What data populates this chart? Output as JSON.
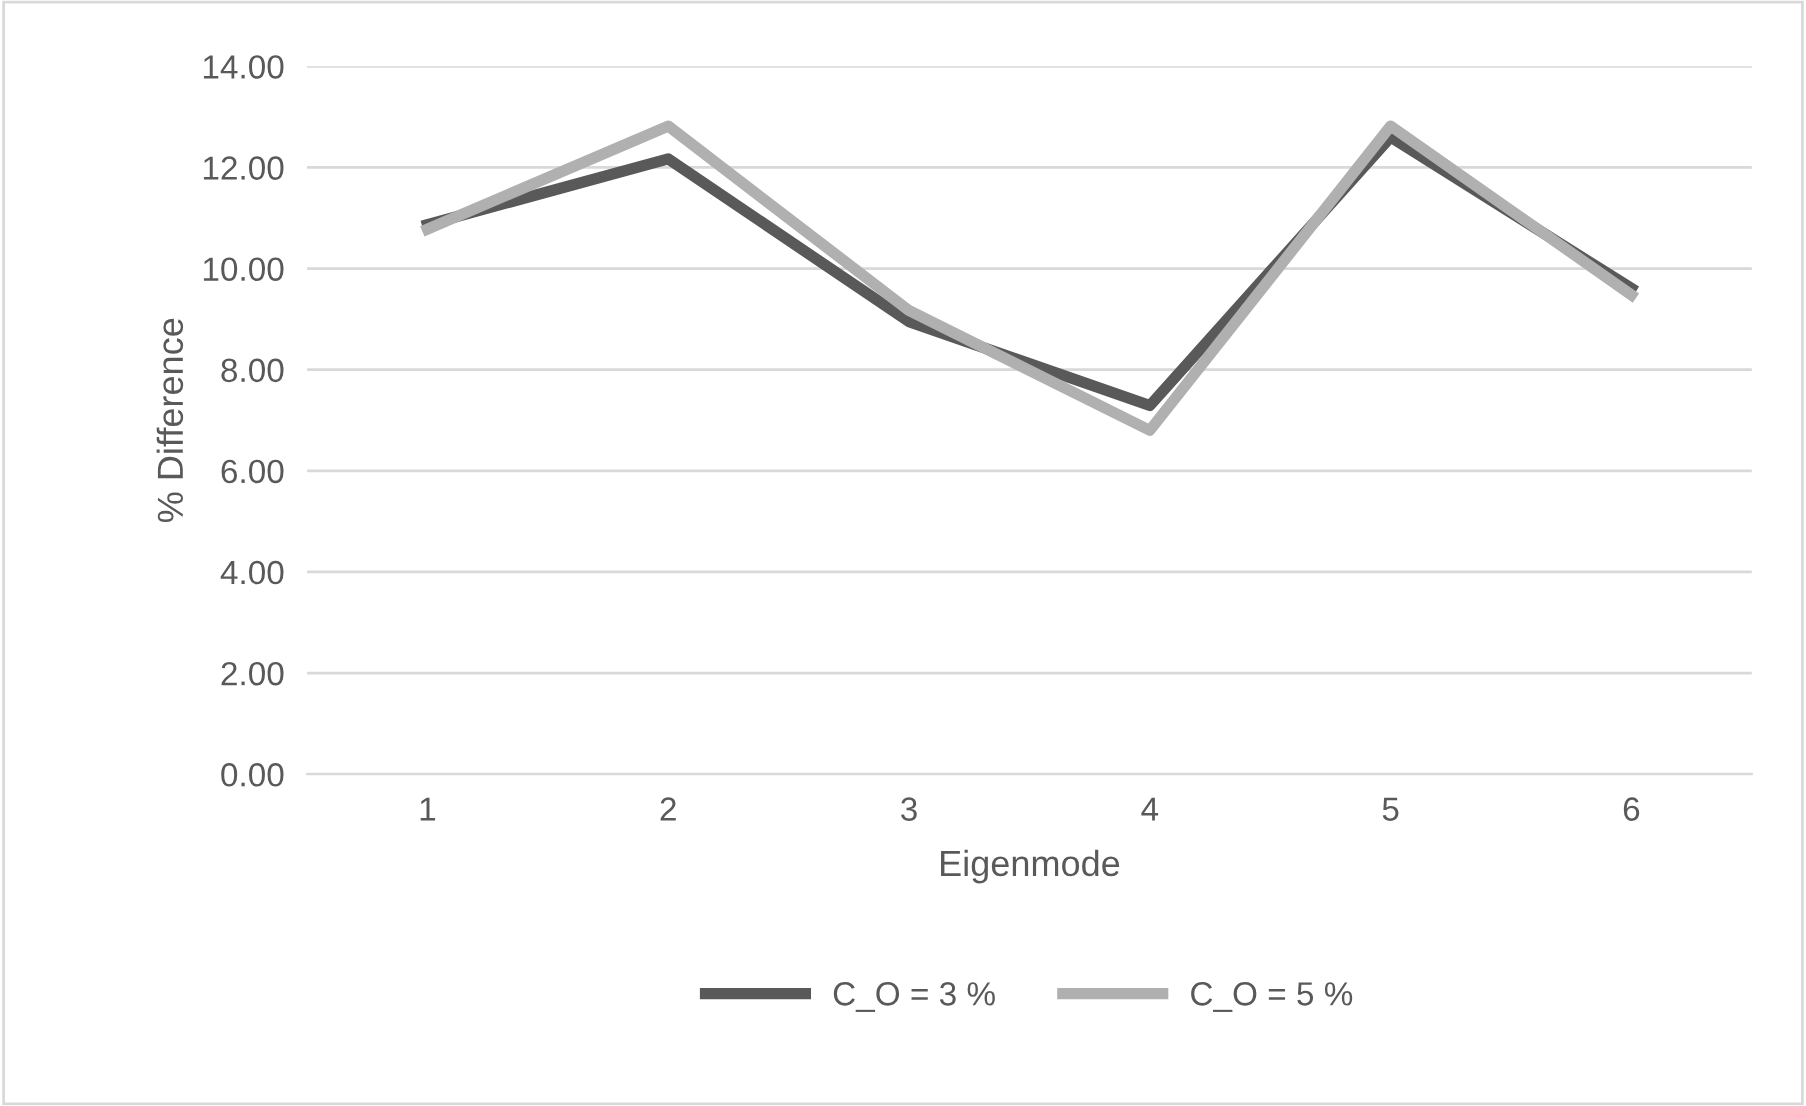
{
  "chart_data": {
    "type": "line",
    "xlabel": "Eigenmode",
    "ylabel": "% Difference",
    "categories": [
      "1",
      "2",
      "3",
      "4",
      "5",
      "6"
    ],
    "series": [
      {
        "name": "C_O = 3 %",
        "color": "#595959",
        "values": [
          10.87,
          12.17,
          8.95,
          7.29,
          12.6,
          9.61
        ]
      },
      {
        "name": "C_O = 5 %",
        "color": "#b0b0b0",
        "values": [
          10.78,
          12.82,
          9.17,
          6.8,
          12.82,
          9.48
        ]
      }
    ],
    "ylim": [
      0,
      14
    ],
    "yticks": [
      {
        "value": 0,
        "label": "0.00"
      },
      {
        "value": 2,
        "label": "2.00"
      },
      {
        "value": 4,
        "label": "4.00"
      },
      {
        "value": 6,
        "label": "6.00"
      },
      {
        "value": 8,
        "label": "8.00"
      },
      {
        "value": 10,
        "label": "10.00"
      },
      {
        "value": 12,
        "label": "12.00"
      },
      {
        "value": 14,
        "label": "14.00"
      }
    ],
    "grid": "y",
    "legend": "bottom",
    "marker": "none",
    "line_style": "solid"
  }
}
